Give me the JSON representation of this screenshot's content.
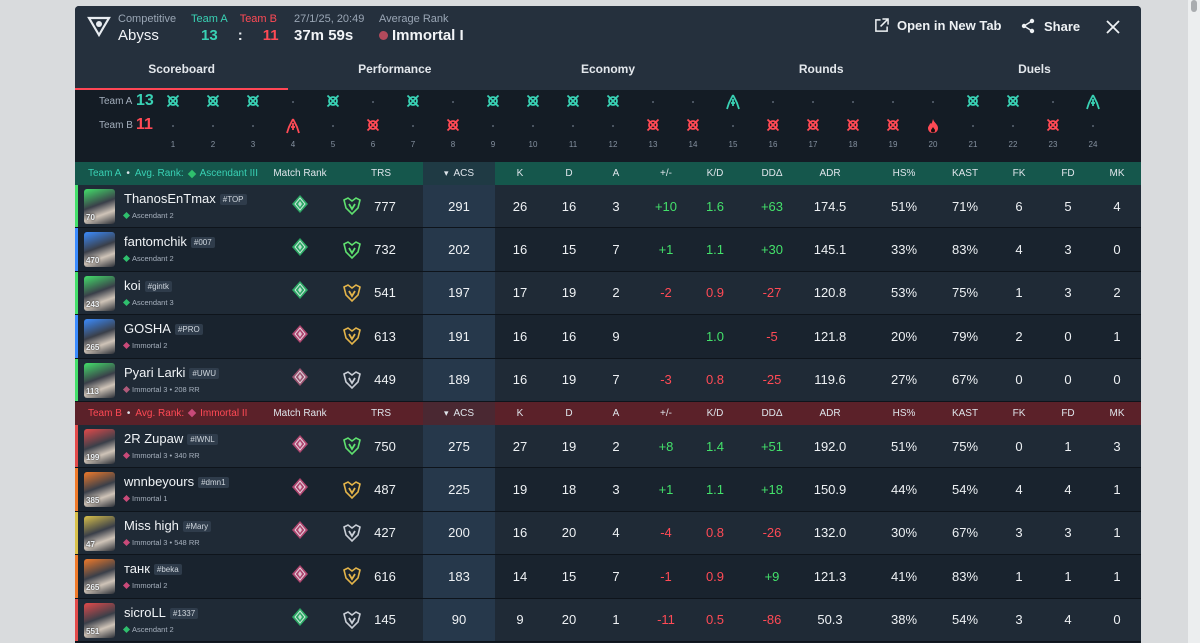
{
  "header": {
    "mode_label": "Competitive",
    "map": "Abyss",
    "team_a_label": "Team A",
    "team_b_label": "Team B",
    "team_a_score": "13",
    "team_b_score": "11",
    "separator": ":",
    "date": "27/1/25, 20:49",
    "duration": "37m 59s",
    "avg_rank_label": "Average Rank",
    "avg_rank": "Immortal I",
    "open_new_tab": "Open in New Tab",
    "share": "Share"
  },
  "tabs": [
    "Scoreboard",
    "Performance",
    "Economy",
    "Rounds",
    "Duels"
  ],
  "timeline": {
    "team_a_label": "Team A",
    "team_b_label": "Team B",
    "team_a_score": "13",
    "team_b_score": "11",
    "rounds": [
      {
        "n": "1",
        "winner": "A",
        "type": "elim"
      },
      {
        "n": "2",
        "winner": "A",
        "type": "elim"
      },
      {
        "n": "3",
        "winner": "A",
        "type": "elim"
      },
      {
        "n": "4",
        "winner": "B",
        "type": "defuse"
      },
      {
        "n": "5",
        "winner": "A",
        "type": "elim"
      },
      {
        "n": "6",
        "winner": "B",
        "type": "elim"
      },
      {
        "n": "7",
        "winner": "A",
        "type": "elim"
      },
      {
        "n": "8",
        "winner": "B",
        "type": "elim"
      },
      {
        "n": "9",
        "winner": "A",
        "type": "elim"
      },
      {
        "n": "10",
        "winner": "A",
        "type": "elim"
      },
      {
        "n": "11",
        "winner": "A",
        "type": "elim"
      },
      {
        "n": "12",
        "winner": "A",
        "type": "elim"
      },
      {
        "n": "13",
        "winner": "B",
        "type": "elim"
      },
      {
        "n": "14",
        "winner": "B",
        "type": "elim"
      },
      {
        "n": "15",
        "winner": "A",
        "type": "defuse"
      },
      {
        "n": "16",
        "winner": "B",
        "type": "elim"
      },
      {
        "n": "17",
        "winner": "B",
        "type": "elim"
      },
      {
        "n": "18",
        "winner": "B",
        "type": "elim"
      },
      {
        "n": "19",
        "winner": "B",
        "type": "elim"
      },
      {
        "n": "20",
        "winner": "B",
        "type": "detonate"
      },
      {
        "n": "21",
        "winner": "A",
        "type": "elim"
      },
      {
        "n": "22",
        "winner": "A",
        "type": "elim"
      },
      {
        "n": "23",
        "winner": "B",
        "type": "elim"
      },
      {
        "n": "24",
        "winner": "A",
        "type": "defuse"
      }
    ]
  },
  "columns": [
    "Match Rank",
    "TRS",
    "ACS",
    "K",
    "D",
    "A",
    "+/-",
    "K/D",
    "DDΔ",
    "ADR",
    "HS%",
    "KAST",
    "FK",
    "FD",
    "MK"
  ],
  "teams": [
    {
      "name": "Team A",
      "bullet": "•",
      "avg_rank_label": "Avg. Rank:",
      "avg_rank": "Ascendant III",
      "color": "#39d1b4",
      "players": [
        {
          "name": "ThanosEnTmax",
          "tag": "#TOP",
          "rank": "Ascendant 2",
          "level": "70",
          "stripe": "#43e06a",
          "mr_color": "#2fbf6d",
          "trs_color": "#5fe06f",
          "trs": "777",
          "acs": "291",
          "k": "26",
          "d": "16",
          "a": "3",
          "pm": "+10",
          "kd": "1.6",
          "dd": "+63",
          "adr": "174.5",
          "hs": "51%",
          "kast": "71%",
          "fk": "6",
          "fd": "5",
          "mk": "4"
        },
        {
          "name": "fantomchik",
          "tag": "#007",
          "rank": "Ascendant 2",
          "level": "470",
          "stripe": "#3b8cff",
          "mr_color": "#2fbf6d",
          "trs_color": "#5fe06f",
          "trs": "732",
          "acs": "202",
          "k": "16",
          "d": "15",
          "a": "7",
          "pm": "+1",
          "kd": "1.1",
          "dd": "+30",
          "adr": "145.1",
          "hs": "33%",
          "kast": "83%",
          "fk": "4",
          "fd": "3",
          "mk": "0"
        },
        {
          "name": "koi",
          "tag": "#gintk",
          "rank": "Ascendant 3",
          "level": "243",
          "stripe": "#43e06a",
          "mr_color": "#2fbf6d",
          "trs_color": "#e3b44a",
          "trs": "541",
          "acs": "197",
          "k": "17",
          "d": "19",
          "a": "2",
          "pm": "-2",
          "kd": "0.9",
          "dd": "-27",
          "adr": "120.8",
          "hs": "53%",
          "kast": "75%",
          "fk": "1",
          "fd": "3",
          "mk": "2"
        },
        {
          "name": "GOSHA",
          "tag": "#PRO",
          "rank": "Immortal 2",
          "level": "265",
          "stripe": "#3b8cff",
          "mr_color": "#c94a79",
          "trs_color": "#e3b44a",
          "trs": "613",
          "acs": "191",
          "k": "16",
          "d": "16",
          "a": "9",
          "pm": "",
          "kd": "1.0",
          "dd": "-5",
          "adr": "121.8",
          "hs": "20%",
          "kast": "79%",
          "fk": "2",
          "fd": "0",
          "mk": "1"
        },
        {
          "name": "Pyari Larki",
          "tag": "#UWU",
          "rank": "Immortal 3 • 208 RR",
          "level": "113",
          "stripe": "#43e06a",
          "mr_color": "#b05a7a",
          "trs_color": "#c9ced6",
          "trs": "449",
          "acs": "189",
          "k": "16",
          "d": "19",
          "a": "7",
          "pm": "-3",
          "kd": "0.8",
          "dd": "-25",
          "adr": "119.6",
          "hs": "27%",
          "kast": "67%",
          "fk": "0",
          "fd": "0",
          "mk": "0"
        }
      ]
    },
    {
      "name": "Team B",
      "bullet": "•",
      "avg_rank_label": "Avg. Rank:",
      "avg_rank": "Immortal II",
      "color": "#ff4a55",
      "players": [
        {
          "name": "2R Zupaw",
          "tag": "#IWNL",
          "rank": "Immortal 3 • 340 RR",
          "level": "199",
          "stripe": "#e34a4a",
          "mr_color": "#c94a79",
          "trs_color": "#5fe06f",
          "trs": "750",
          "acs": "275",
          "k": "27",
          "d": "19",
          "a": "2",
          "pm": "+8",
          "kd": "1.4",
          "dd": "+51",
          "adr": "192.0",
          "hs": "51%",
          "kast": "75%",
          "fk": "0",
          "fd": "1",
          "mk": "3"
        },
        {
          "name": "wnnbeyours",
          "tag": "#dmn1",
          "rank": "Immortal 1",
          "level": "385",
          "stripe": "#f07a2a",
          "mr_color": "#c94a79",
          "trs_color": "#e3b44a",
          "trs": "487",
          "acs": "225",
          "k": "19",
          "d": "18",
          "a": "3",
          "pm": "+1",
          "kd": "1.1",
          "dd": "+18",
          "adr": "150.9",
          "hs": "44%",
          "kast": "54%",
          "fk": "4",
          "fd": "4",
          "mk": "1"
        },
        {
          "name": "Miss high",
          "tag": "#Mary",
          "rank": "Immortal 3 • 548 RR",
          "level": "47",
          "stripe": "#d9c14a",
          "mr_color": "#c94a79",
          "trs_color": "#c9ced6",
          "trs": "427",
          "acs": "200",
          "k": "16",
          "d": "20",
          "a": "4",
          "pm": "-4",
          "kd": "0.8",
          "dd": "-26",
          "adr": "132.0",
          "hs": "30%",
          "kast": "67%",
          "fk": "3",
          "fd": "3",
          "mk": "1"
        },
        {
          "name": "танк",
          "tag": "#beka",
          "rank": "Immortal 2",
          "level": "265",
          "stripe": "#f07a2a",
          "mr_color": "#c94a79",
          "trs_color": "#e3b44a",
          "trs": "616",
          "acs": "183",
          "k": "14",
          "d": "15",
          "a": "7",
          "pm": "-1",
          "kd": "0.9",
          "dd": "+9",
          "adr": "121.3",
          "hs": "41%",
          "kast": "83%",
          "fk": "1",
          "fd": "1",
          "mk": "1"
        },
        {
          "name": "sicroLL",
          "tag": "#1337",
          "rank": "Ascendant 2",
          "level": "551",
          "stripe": "#e34a4a",
          "mr_color": "#2fbf6d",
          "trs_color": "#c9ced6",
          "trs": "145",
          "acs": "90",
          "k": "9",
          "d": "20",
          "a": "1",
          "pm": "-11",
          "kd": "0.5",
          "dd": "-86",
          "adr": "50.3",
          "hs": "38%",
          "kast": "54%",
          "fk": "3",
          "fd": "4",
          "mk": "0"
        }
      ]
    }
  ]
}
